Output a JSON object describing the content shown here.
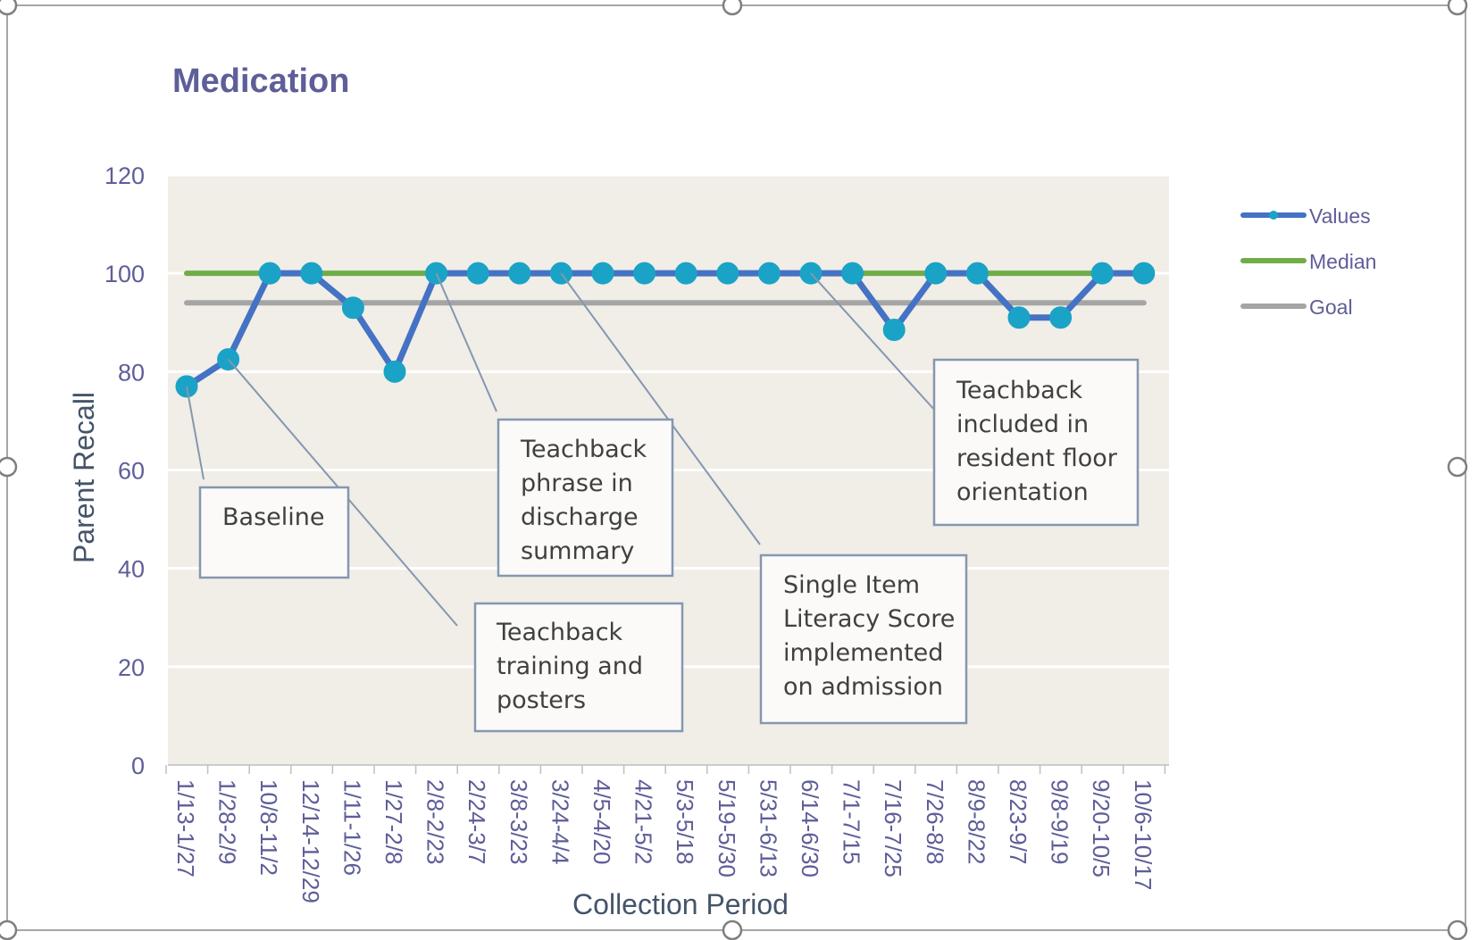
{
  "chart_data": {
    "type": "line",
    "title": "Medication",
    "xlabel": "Collection Period",
    "ylabel": "Parent Recall",
    "ylim": [
      0,
      120
    ],
    "yticks": [
      0,
      20,
      40,
      60,
      80,
      100,
      120
    ],
    "grid": true,
    "legend_position": "right",
    "categories": [
      "1/13-1/27",
      "1/28-2/9",
      "10/8-11/2",
      "12/14-12/29",
      "1/11-1/26",
      "1/27-2/8",
      "2/8-2/23",
      "2/24-3/7",
      "3/8-3/23",
      "3/24-4/4",
      "4/5-4/20",
      "4/21-5/2",
      "5/3-5/18",
      "5/19-5/30",
      "5/31-6/13",
      "6/14-6/30",
      "7/1-7/15",
      "7/16-7/25",
      "7/26-8/8",
      "8/9-8/22",
      "8/23-9/7",
      "9/8-9/19",
      "9/20-10/5",
      "10/6-10/17"
    ],
    "series": [
      {
        "name": "Values",
        "color": "#4472C4",
        "marker_color": "#1AA3C6",
        "values": [
          77,
          82.5,
          100,
          100,
          93,
          80,
          100,
          100,
          100,
          100,
          100,
          100,
          100,
          100,
          100,
          100,
          100,
          88.5,
          100,
          100,
          91,
          91,
          100,
          100
        ]
      },
      {
        "name": "Median",
        "color": "#70AD47",
        "values": [
          100,
          100,
          100,
          100,
          100,
          100,
          100,
          100,
          100,
          100,
          100,
          100,
          100,
          100,
          100,
          100,
          100,
          100,
          100,
          100,
          100,
          100,
          100,
          100
        ]
      },
      {
        "name": "Goal",
        "color": "#A5A5A5",
        "values": [
          94,
          94,
          94,
          94,
          94,
          94,
          94,
          94,
          94,
          94,
          94,
          94,
          94,
          94,
          94,
          94,
          94,
          94,
          94,
          94,
          94,
          94,
          94,
          94
        ]
      }
    ],
    "annotations": [
      {
        "lines": [
          "Baseline"
        ],
        "point_index": 0
      },
      {
        "lines": [
          "Teachback",
          "training and",
          "posters"
        ],
        "point_index": 1
      },
      {
        "lines": [
          "Teachback",
          "phrase in",
          "discharge",
          "summary"
        ],
        "point_index": 6
      },
      {
        "lines": [
          "Single Item",
          "Literacy Score",
          "implemented",
          "on admission"
        ],
        "point_index": 9
      },
      {
        "lines": [
          "Teachback",
          "included in",
          "resident floor",
          "orientation"
        ],
        "point_index": 15
      }
    ],
    "colors": {
      "title": "#5E5E99",
      "axis_text": "#5E5E99",
      "axis_title": "#44546A",
      "plot_bg": "#F1EDE7",
      "gridline": "#FFFFFF",
      "callout_border": "#8497B0",
      "callout_text": "#404040"
    }
  }
}
